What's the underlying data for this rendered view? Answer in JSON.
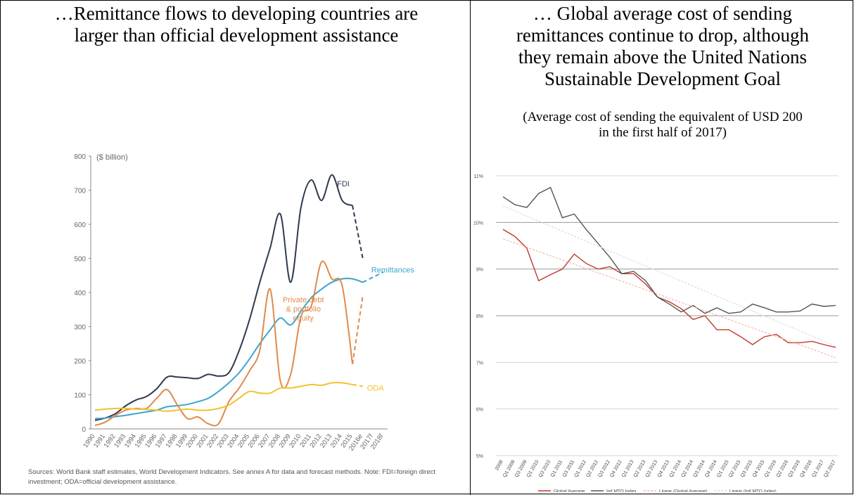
{
  "left_panel": {
    "heading_line1": "…Remittance flows to developing countries are",
    "heading_line2": "larger than official development assistance",
    "sources_line1": "Sources: World Bank staff estimates, World Development Indicators. See annex A for data and forecast methods. Note: FDI=foreign direct",
    "sources_line2": "investment; ODA=official development assistance."
  },
  "right_panel": {
    "heading_line1": "… Global average cost of sending",
    "heading_line2": "remittances continue to drop, although",
    "heading_line3": "they remain above the United Nations",
    "heading_line4": "Sustainable Development Goal",
    "sub_line1": "(Average cost of sending the equivalent of USD 200",
    "sub_line2": "in the first half of 2017)"
  },
  "chart_data": [
    {
      "type": "line",
      "ylabel": "($ billion)",
      "ylim": [
        0,
        800
      ],
      "yticks": [
        0,
        100,
        200,
        300,
        400,
        500,
        600,
        700,
        800
      ],
      "x": [
        "1990",
        "1991",
        "1992",
        "1993",
        "1994",
        "1995",
        "1996",
        "1997",
        "1998",
        "1999",
        "2000",
        "2001",
        "2002",
        "2003",
        "2004",
        "2005",
        "2006",
        "2007",
        "2008",
        "2009",
        "2010",
        "2011",
        "2012",
        "2013",
        "2014",
        "2015",
        "2016e",
        "2017f",
        "2018f"
      ],
      "grid": false,
      "series": [
        {
          "name": "FDI",
          "color": "#2e3a4e",
          "values": [
            25,
            32,
            45,
            68,
            85,
            95,
            118,
            152,
            152,
            150,
            148,
            160,
            155,
            165,
            230,
            320,
            430,
            530,
            630,
            430,
            650,
            730,
            670,
            745,
            670,
            655,
            500,
            null,
            null
          ],
          "forecast_from": 25
        },
        {
          "name": "Remittances",
          "color": "#3aa5d0",
          "values": [
            30,
            32,
            36,
            40,
            45,
            50,
            55,
            65,
            68,
            72,
            80,
            90,
            110,
            135,
            165,
            205,
            250,
            290,
            325,
            305,
            345,
            385,
            410,
            430,
            440,
            440,
            430,
            445,
            460
          ],
          "forecast_from": 26
        },
        {
          "name": "Private debt & portfolio equity",
          "color": "#e08a4a",
          "values": [
            10,
            20,
            40,
            55,
            60,
            60,
            90,
            115,
            70,
            30,
            35,
            15,
            15,
            80,
            120,
            170,
            230,
            410,
            140,
            160,
            330,
            360,
            490,
            440,
            420,
            190,
            390,
            null,
            null
          ],
          "forecast_from": 25
        },
        {
          "name": "ODA",
          "color": "#f2c12e",
          "values": [
            55,
            58,
            60,
            60,
            58,
            57,
            55,
            52,
            55,
            58,
            55,
            55,
            60,
            70,
            90,
            110,
            105,
            105,
            120,
            120,
            125,
            130,
            128,
            135,
            135,
            130,
            125,
            null,
            null
          ],
          "forecast_from": 25
        }
      ]
    },
    {
      "type": "line",
      "ylim": [
        5,
        11
      ],
      "yticks": [
        "5%",
        "6%",
        "7%",
        "8%",
        "9%",
        "10%",
        "11%"
      ],
      "categories": [
        "2008",
        "Q1 2009",
        "Q3 2009",
        "Q1 2010",
        "Q3 2010",
        "Q1 2011",
        "Q3 2011",
        "Q1 2012",
        "Q2 2012",
        "Q3 2012",
        "Q4 2012",
        "Q1 2013",
        "Q2 2013",
        "Q3 2013",
        "Q4 2013",
        "Q1 2014",
        "Q2 2014",
        "Q3 2014",
        "Q4 2014",
        "Q1 2015",
        "Q2 2015",
        "Q3 2015",
        "Q4 2015",
        "Q1 2016",
        "Q2 2016",
        "Q3 2016",
        "Q4 2016",
        "Q1 2017",
        "Q2 2017"
      ],
      "grid": true,
      "legend_position": "bottom",
      "series": [
        {
          "name": "Global Average",
          "color": "#c0392b",
          "values": [
            9.85,
            9.7,
            9.45,
            8.75,
            8.88,
            9.0,
            9.32,
            9.12,
            9.0,
            9.05,
            8.9,
            8.9,
            8.68,
            8.4,
            8.3,
            8.15,
            7.92,
            8.0,
            7.7,
            7.7,
            7.55,
            7.38,
            7.55,
            7.6,
            7.42,
            7.42,
            7.45,
            7.38,
            7.32
          ]
        },
        {
          "name": "Intl MTO Index",
          "color": "#555555",
          "values": [
            10.55,
            10.38,
            10.32,
            10.62,
            10.75,
            10.1,
            10.18,
            9.85,
            9.55,
            9.25,
            8.9,
            8.95,
            8.75,
            8.4,
            8.25,
            8.08,
            8.22,
            8.05,
            8.17,
            8.05,
            8.08,
            8.25,
            8.17,
            8.08,
            8.08,
            8.1,
            8.25,
            8.2,
            8.22
          ]
        },
        {
          "name": "Linear (Global Average)",
          "color": "#f0b8b0",
          "values": [
            9.65,
            null,
            null,
            null,
            null,
            null,
            null,
            null,
            null,
            null,
            null,
            null,
            null,
            null,
            null,
            null,
            null,
            null,
            null,
            null,
            null,
            null,
            null,
            null,
            null,
            null,
            null,
            null,
            7.1
          ]
        },
        {
          "name": "Linear (Intl MTO Index)",
          "color": "#e6d6e6",
          "values": [
            10.35,
            null,
            null,
            null,
            null,
            null,
            null,
            null,
            null,
            null,
            null,
            null,
            null,
            null,
            null,
            null,
            null,
            null,
            null,
            null,
            null,
            null,
            null,
            null,
            null,
            null,
            null,
            null,
            7.35
          ]
        }
      ]
    }
  ]
}
